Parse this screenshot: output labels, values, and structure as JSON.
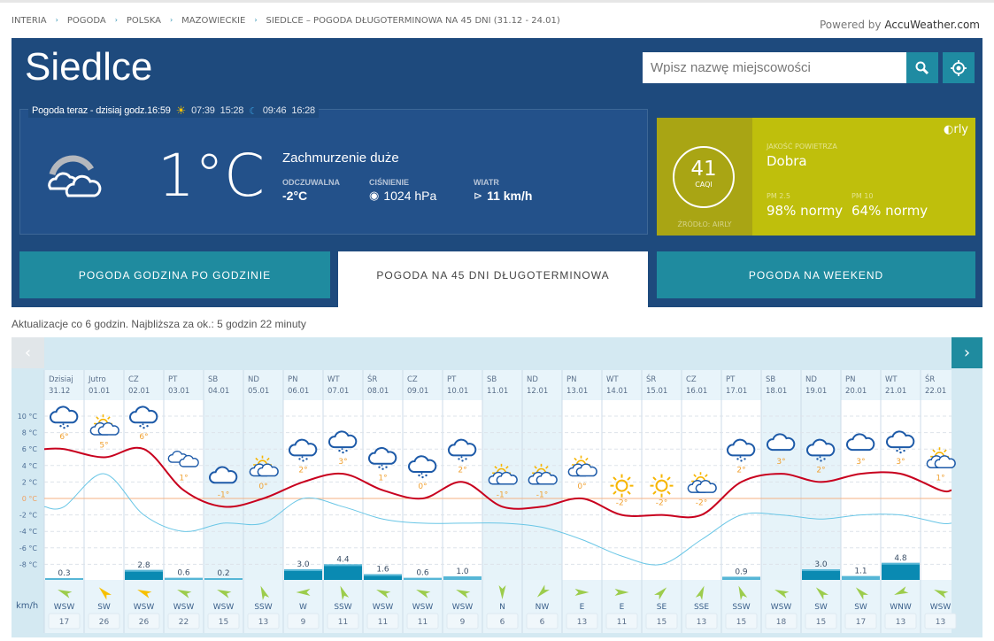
{
  "breadcrumb": [
    "INTERIA",
    "POGODA",
    "POLSKA",
    "MAZOWIECKIE",
    "SIEDLCE – POGODA DŁUGOTERMINOWA NA 45 DNI (31.12 - 24.01)"
  ],
  "powered": {
    "prefix": "Powered by ",
    "brand": "AccuWeather.com"
  },
  "city": "Siedlce",
  "search": {
    "placeholder": "Wpisz nazwę miejscowości"
  },
  "now": {
    "title": "Pogoda teraz - dzisiaj  godz.16:59",
    "sunrise": "07:39",
    "sunset": "15:28",
    "moonrise": "09:46",
    "moonset": "16:28",
    "temp": "1°C",
    "description": "Zachmurzenie duże",
    "feels_label": "ODCZUWALNA",
    "feels": "-2°C",
    "pressure_label": "CIŚNIENIE",
    "pressure": "1024 hPa",
    "wind_label": "WIATR",
    "wind": "11 km/h"
  },
  "air": {
    "value": "41",
    "unit": "CAQI",
    "source": "ŹRÓDŁO: AIRLY",
    "label": "JAKOŚĆ POWIETRZA",
    "quality": "Dobra",
    "pm25_label": "PM 2.5",
    "pm25": "98% normy",
    "pm10_label": "PM 10",
    "pm10": "64% normy",
    "brand": "airly"
  },
  "tabs": [
    "POGODA GODZINA PO GODZINIE",
    "POGODA NA 45 DNI DŁUGOTERMINOWA",
    "POGODA NA WEEKEND"
  ],
  "update": "Aktualizacje co 6 godzin. Najbliższa za ok.: 5 godzin 22 minuty",
  "colors": {
    "panel": "#1e4a7d",
    "accent": "#1f8b9f",
    "day_line": "#c8001e",
    "night_line": "#69c6e6",
    "zero_line": "#f4b183",
    "air": "#bfbf0c"
  },
  "chart_data": {
    "type": "line",
    "yticks": [
      "10 °C",
      "8 °C",
      "6 °C",
      "4 °C",
      "2 °C",
      "0 °C",
      "-2 °C",
      "-4 °C",
      "-6 °C",
      "-8 °C"
    ],
    "ylim": [
      -8,
      10
    ],
    "wind_unit": "km/h",
    "days": [
      {
        "d": "Dzisiaj",
        "date": "31.12",
        "hi": 6,
        "lo": -1,
        "icon": "snow",
        "p": "0.3",
        "dir": "WSW",
        "ws": "17"
      },
      {
        "d": "Jutro",
        "date": "01.01",
        "hi": 5,
        "lo": 3,
        "icon": "partly",
        "p": null,
        "dir": "SW",
        "ws": "26"
      },
      {
        "d": "CZ",
        "date": "02.01",
        "hi": 6,
        "lo": -2,
        "icon": "snow",
        "p": "2.8",
        "dir": "WSW",
        "ws": "26"
      },
      {
        "d": "PT",
        "date": "03.01",
        "hi": 1,
        "lo": -4,
        "icon": "clouds",
        "p": "0.6",
        "dir": "WSW",
        "ws": "22"
      },
      {
        "d": "SB",
        "date": "04.01",
        "hi": -1,
        "lo": -3,
        "icon": "cloud",
        "p": "0.2",
        "dir": "WSW",
        "ws": "15"
      },
      {
        "d": "ND",
        "date": "05.01",
        "hi": 0,
        "lo": -3,
        "icon": "partly",
        "p": null,
        "dir": "SSW",
        "ws": "13"
      },
      {
        "d": "PN",
        "date": "06.01",
        "hi": 2,
        "lo": 0,
        "icon": "snow",
        "p": "3.0",
        "dir": "W",
        "ws": "9"
      },
      {
        "d": "WT",
        "date": "07.01",
        "hi": 3,
        "lo": -1,
        "icon": "snow",
        "p": "4.4",
        "dir": "SSW",
        "ws": "11"
      },
      {
        "d": "ŚR",
        "date": "08.01",
        "hi": 1,
        "lo": -2.5,
        "icon": "snow",
        "p": "1.6",
        "dir": "WSW",
        "ws": "11"
      },
      {
        "d": "CZ",
        "date": "09.01",
        "hi": 0,
        "lo": -3,
        "icon": "snow",
        "p": "0.6",
        "dir": "WSW",
        "ws": "11"
      },
      {
        "d": "PT",
        "date": "10.01",
        "hi": 2,
        "lo": -3,
        "icon": "snow",
        "p": "1.0",
        "dir": "WSW",
        "ws": "9"
      },
      {
        "d": "SB",
        "date": "11.01",
        "hi": -1,
        "lo": -3,
        "icon": "partly",
        "p": null,
        "dir": "N",
        "ws": "6"
      },
      {
        "d": "ND",
        "date": "12.01",
        "hi": -1,
        "lo": -3.5,
        "icon": "partly",
        "p": null,
        "dir": "NW",
        "ws": "6"
      },
      {
        "d": "PN",
        "date": "13.01",
        "hi": 0,
        "lo": -5,
        "icon": "partly",
        "p": null,
        "dir": "E",
        "ws": "13"
      },
      {
        "d": "WT",
        "date": "14.01",
        "hi": -2,
        "lo": -7,
        "icon": "sun",
        "p": null,
        "dir": "E",
        "ws": "11"
      },
      {
        "d": "ŚR",
        "date": "15.01",
        "hi": -2,
        "lo": -8,
        "icon": "sun",
        "p": null,
        "dir": "SE",
        "ws": "15"
      },
      {
        "d": "CZ",
        "date": "16.01",
        "hi": -2,
        "lo": -5,
        "icon": "partly",
        "p": null,
        "dir": "SSE",
        "ws": "13"
      },
      {
        "d": "PT",
        "date": "17.01",
        "hi": 2,
        "lo": -2,
        "icon": "snow",
        "p": "0.9",
        "dir": "SSW",
        "ws": "15"
      },
      {
        "d": "SB",
        "date": "18.01",
        "hi": 3,
        "lo": -2,
        "icon": "cloud",
        "p": null,
        "dir": "WSW",
        "ws": "18"
      },
      {
        "d": "ND",
        "date": "19.01",
        "hi": 2,
        "lo": -2.5,
        "icon": "snow",
        "p": "3.0",
        "dir": "SW",
        "ws": "15"
      },
      {
        "d": "PN",
        "date": "20.01",
        "hi": 3,
        "lo": -2,
        "icon": "cloud",
        "p": "1.1",
        "dir": "SW",
        "ws": "17"
      },
      {
        "d": "WT",
        "date": "21.01",
        "hi": 3,
        "lo": -2,
        "icon": "snow",
        "p": "4.8",
        "dir": "WNW",
        "ws": "13"
      },
      {
        "d": "ŚR",
        "date": "22.01",
        "hi": 1,
        "lo": -3,
        "icon": "partly",
        "p": null,
        "dir": "WSW",
        "ws": "13"
      }
    ]
  }
}
